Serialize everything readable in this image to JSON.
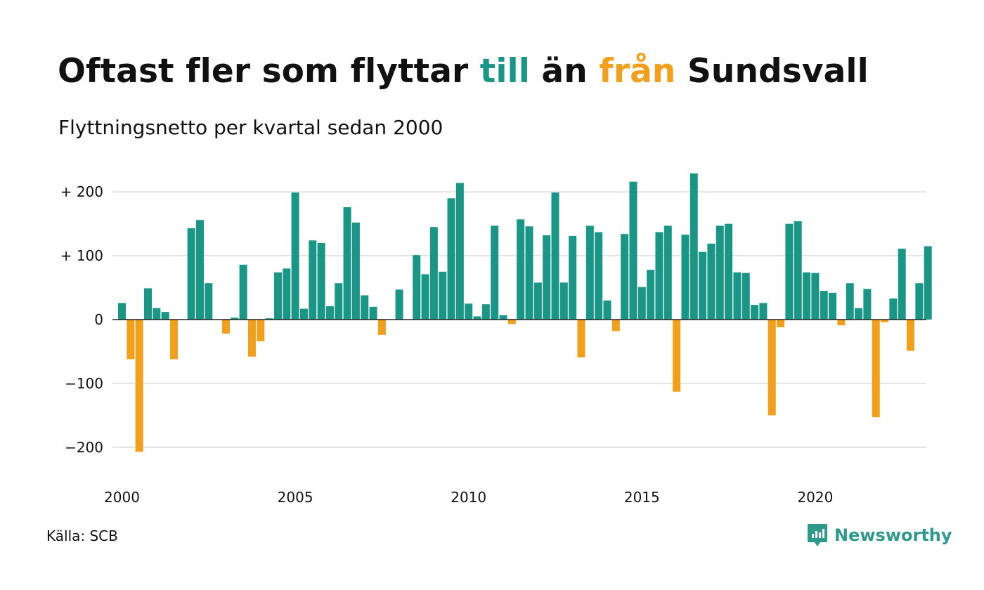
{
  "title": {
    "part1": "Oftast fler som flyttar ",
    "till": "till",
    "part2": " än ",
    "fran": "från",
    "part3": " Sundsvall"
  },
  "subtitle": "Flyttningsnetto per kvartal sedan 2000",
  "source": "Källa: SCB",
  "brand": {
    "name": "Newsworthy",
    "icon": "newsworthy-logo-icon"
  },
  "colors": {
    "positive": "#1a9687",
    "negative": "#f29f1c",
    "brand": "#2f9a8c",
    "grid": "#e2e2e2",
    "zero_line": "#222222"
  },
  "chart_data": {
    "type": "bar",
    "title": "Oftast fler som flyttar till än från Sundsvall",
    "subtitle": "Flyttningsnetto per kvartal sedan 2000",
    "xlabel": "",
    "ylabel": "",
    "ylim": [
      -230,
      250
    ],
    "y_ticks": [
      200,
      100,
      0,
      -100,
      -200
    ],
    "y_tick_labels": [
      "+ 200",
      "+ 100",
      "0",
      "−100",
      "−200"
    ],
    "x_tick_labels": [
      "2000",
      "2005",
      "2010",
      "2015",
      "2020"
    ],
    "x_tick_years": [
      2000,
      2005,
      2010,
      2015,
      2020
    ],
    "first_period": "2000 Q1",
    "last_period": "2023 Q2",
    "categories": [
      "2000 Q1",
      "2000 Q2",
      "2000 Q3",
      "2000 Q4",
      "2001 Q1",
      "2001 Q2",
      "2001 Q3",
      "2001 Q4",
      "2002 Q1",
      "2002 Q2",
      "2002 Q3",
      "2002 Q4",
      "2003 Q1",
      "2003 Q2",
      "2003 Q3",
      "2003 Q4",
      "2004 Q1",
      "2004 Q2",
      "2004 Q3",
      "2004 Q4",
      "2005 Q1",
      "2005 Q2",
      "2005 Q3",
      "2005 Q4",
      "2006 Q1",
      "2006 Q2",
      "2006 Q3",
      "2006 Q4",
      "2007 Q1",
      "2007 Q2",
      "2007 Q3",
      "2007 Q4",
      "2008 Q1",
      "2008 Q2",
      "2008 Q3",
      "2008 Q4",
      "2009 Q1",
      "2009 Q2",
      "2009 Q3",
      "2009 Q4",
      "2010 Q1",
      "2010 Q2",
      "2010 Q3",
      "2010 Q4",
      "2011 Q1",
      "2011 Q2",
      "2011 Q3",
      "2011 Q4",
      "2012 Q1",
      "2012 Q2",
      "2012 Q3",
      "2012 Q4",
      "2013 Q1",
      "2013 Q2",
      "2013 Q3",
      "2013 Q4",
      "2014 Q1",
      "2014 Q2",
      "2014 Q3",
      "2014 Q4",
      "2015 Q1",
      "2015 Q2",
      "2015 Q3",
      "2015 Q4",
      "2016 Q1",
      "2016 Q2",
      "2016 Q3",
      "2016 Q4",
      "2017 Q1",
      "2017 Q2",
      "2017 Q3",
      "2017 Q4",
      "2018 Q1",
      "2018 Q2",
      "2018 Q3",
      "2018 Q4",
      "2019 Q1",
      "2019 Q2",
      "2019 Q3",
      "2019 Q4",
      "2020 Q1",
      "2020 Q2",
      "2020 Q3",
      "2020 Q4",
      "2021 Q1",
      "2021 Q2",
      "2021 Q3",
      "2021 Q4",
      "2022 Q1",
      "2022 Q2",
      "2022 Q3",
      "2022 Q4",
      "2023 Q1",
      "2023 Q2"
    ],
    "values": [
      26,
      -62,
      -207,
      49,
      18,
      12,
      -62,
      0,
      143,
      156,
      57,
      0,
      -22,
      3,
      86,
      -58,
      -34,
      2,
      74,
      80,
      199,
      17,
      124,
      120,
      21,
      57,
      176,
      152,
      38,
      20,
      -24,
      0,
      47,
      0,
      101,
      71,
      145,
      75,
      190,
      214,
      25,
      5,
      24,
      147,
      7,
      -7,
      157,
      146,
      58,
      132,
      199,
      58,
      131,
      -59,
      147,
      137,
      30,
      -18,
      134,
      216,
      51,
      78,
      137,
      147,
      -113,
      133,
      229,
      106,
      119,
      147,
      150,
      74,
      73,
      23,
      26,
      -150,
      -12,
      150,
      154,
      74,
      73,
      45,
      42,
      -9,
      57,
      18,
      48,
      -153,
      -4,
      33,
      111,
      -49,
      57,
      115
    ]
  }
}
